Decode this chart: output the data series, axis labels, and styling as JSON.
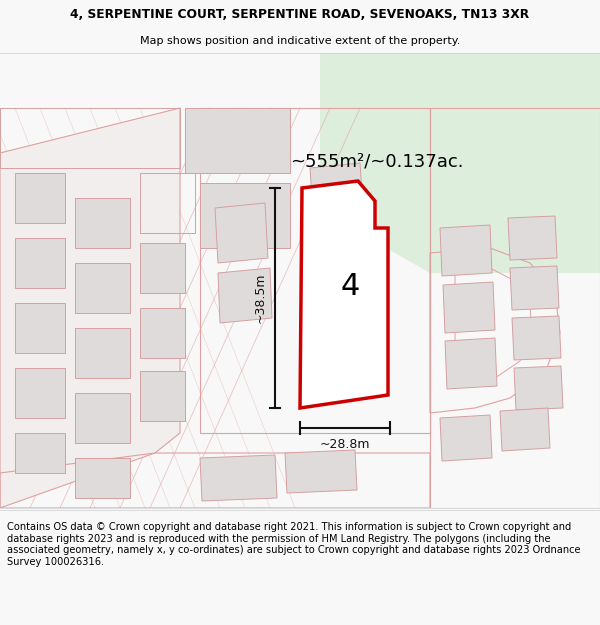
{
  "title_line1": "4, SERPENTINE COURT, SERPENTINE ROAD, SEVENOAKS, TN13 3XR",
  "title_line2": "Map shows position and indicative extent of the property.",
  "footer_text": "Contains OS data © Crown copyright and database right 2021. This information is subject to Crown copyright and database rights 2023 and is reproduced with the permission of HM Land Registry. The polygons (including the associated geometry, namely x, y co-ordinates) are subject to Crown copyright and database rights 2023 Ordnance Survey 100026316.",
  "area_label": "~555m²/~0.137ac.",
  "plot_number": "4",
  "dim_height": "~38.5m",
  "dim_width": "~28.8m",
  "map_bg": "#f2eeee",
  "green_color": "#ddeedd",
  "plot_fill": "#ffffff",
  "plot_border": "#cc0000",
  "bldg_fill": "#e0dbdb",
  "bldg_edge": "#d4a0a0",
  "road_edge": "#e0a0a0",
  "dim_color": "#111111",
  "title_bg": "#f8f8f8",
  "footer_bg": "#f8f8f8"
}
